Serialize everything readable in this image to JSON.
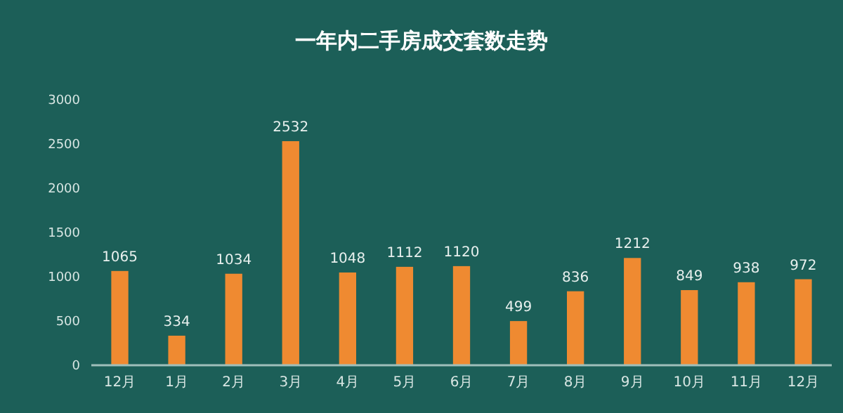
{
  "chart_data": {
    "type": "bar",
    "title": "一年内二手房成交套数走势",
    "categories": [
      "12月",
      "1月",
      "2月",
      "3月",
      "4月",
      "5月",
      "6月",
      "7月",
      "8月",
      "9月",
      "10月",
      "11月",
      "12月"
    ],
    "values": [
      1065,
      334,
      1034,
      2532,
      1048,
      1112,
      1120,
      499,
      836,
      1212,
      849,
      938,
      972
    ],
    "color": "#ef8a31",
    "ylim": [
      0,
      3000
    ],
    "yticks": [
      0,
      500,
      1000,
      1500,
      2000,
      2500,
      3000
    ],
    "grid": false,
    "data_labels": true
  }
}
